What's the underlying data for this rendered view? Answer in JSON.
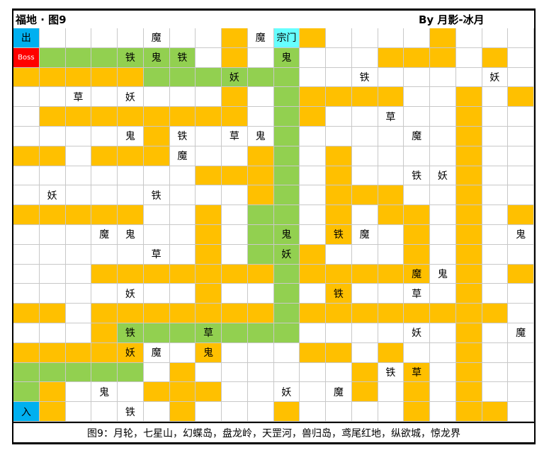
{
  "title": "福地 · 图9",
  "author": "By  月影-冰月",
  "footer": "图9：月轮，七星山，幻蝶岛，盘龙岭，天罡河，兽归岛，鸢尾红地，纵欲城，惊龙界",
  "colors": {
    "orange": "#ffc000",
    "green": "#92d050",
    "blue": "#00b0f0",
    "red": "#ff0000",
    "cyan": "#66ffff",
    "white": "#ffffff"
  },
  "legend_codes": {
    "O": "orange",
    "G": "green",
    "B": "blue",
    "R": "red",
    "C": "cyan",
    "W": "white"
  },
  "grid": {
    "rows": 20,
    "cols": 20,
    "fill": [
      "BWWWWWWWOWCOWWWWOWWW",
      "RGGGGGGWOWGWWWOOOWOW",
      "OOOOOGGGGGGWWWWWWWWW",
      "WWWWWWWWOWGOOOOWWOWO",
      "WOOOOOOOOWGOWWWWWOWW",
      "WWWWWOWWWWGWWWWWWOWW",
      "OOWOOOWWWOGWOWWWWOWW",
      "WWWWWWWOOOGWOWWWWOWW",
      "WWWWWWWWWOGWOOOWWOWW",
      "OOOOOWWOWGGWOWOOWOWO",
      "WWWWWWWOWGGWOWWOWOWW",
      "WWWWWWWOWGGOWWWOWOWW",
      "WWWOOOOOOOGOOOOOWOWO",
      "WWWWWWWOWWGWOWWWWOWW",
      "OOWOOOOOOOGOOOOOOOOW",
      "WWWOGGGGGGGWWWWWWOWW",
      "OOOOOWWOWWWOOWOWWOWW",
      "GGGGGWOWWWWWWOWOWOWW",
      "GOWWWOOOWWWWWOWOWOWW",
      "BOWWWWOWWWOWWWWOWOOW"
    ],
    "labels": [
      [
        "出",
        "",
        "",
        "",
        "",
        "魔",
        "",
        "",
        "",
        "魔",
        "宗门",
        "",
        "",
        "",
        "",
        "",
        "",
        "",
        "",
        ""
      ],
      [
        "Boss",
        "",
        "",
        "",
        "铁",
        "鬼",
        "铁",
        "",
        "",
        "",
        "鬼",
        "",
        "",
        "",
        "",
        "",
        "",
        "",
        "",
        ""
      ],
      [
        "",
        "",
        "",
        "",
        "",
        "",
        "",
        "",
        "妖",
        "",
        "",
        "",
        "",
        "铁",
        "",
        "",
        "",
        "",
        "妖",
        ""
      ],
      [
        "",
        "",
        "草",
        "",
        "妖",
        "",
        "",
        "",
        "",
        "",
        "",
        "",
        "",
        "",
        "",
        "",
        "",
        "",
        "",
        ""
      ],
      [
        "",
        "",
        "",
        "",
        "",
        "",
        "",
        "",
        "",
        "",
        "",
        "",
        "",
        "",
        "草",
        "",
        "",
        "",
        "",
        ""
      ],
      [
        "",
        "",
        "",
        "",
        "鬼",
        "",
        "铁",
        "",
        "草",
        "鬼",
        "",
        "",
        "",
        "",
        "",
        "魔",
        "",
        "",
        "",
        ""
      ],
      [
        "",
        "",
        "",
        "",
        "",
        "",
        "魔",
        "",
        "",
        "",
        "",
        "",
        "",
        "",
        "",
        "",
        "",
        "",
        "",
        ""
      ],
      [
        "",
        "",
        "",
        "",
        "",
        "",
        "",
        "",
        "",
        "",
        "",
        "",
        "",
        "",
        "",
        "铁",
        "妖",
        "",
        "",
        ""
      ],
      [
        "",
        "妖",
        "",
        "",
        "",
        "铁",
        "",
        "",
        "",
        "",
        "",
        "",
        "",
        "",
        "",
        "",
        "",
        "",
        "",
        ""
      ],
      [
        "",
        "",
        "",
        "",
        "",
        "",
        "",
        "",
        "",
        "",
        "",
        "",
        "",
        "",
        "",
        "",
        "",
        "",
        "",
        ""
      ],
      [
        "",
        "",
        "",
        "魔",
        "鬼",
        "",
        "",
        "",
        "",
        "",
        "鬼",
        "",
        "铁",
        "魔",
        "",
        "",
        "",
        "",
        "",
        "鬼"
      ],
      [
        "",
        "",
        "",
        "",
        "",
        "草",
        "",
        "",
        "",
        "",
        "妖",
        "",
        "",
        "",
        "",
        "",
        "",
        "",
        "",
        ""
      ],
      [
        "",
        "",
        "",
        "",
        "",
        "",
        "",
        "",
        "",
        "",
        "",
        "",
        "",
        "",
        "",
        "魔",
        "鬼",
        "",
        "",
        ""
      ],
      [
        "",
        "",
        "",
        "",
        "妖",
        "",
        "",
        "",
        "",
        "",
        "",
        "",
        "铁",
        "",
        "",
        "草",
        "",
        "",
        "",
        ""
      ],
      [
        "",
        "",
        "",
        "",
        "",
        "",
        "",
        "",
        "",
        "",
        "",
        "",
        "",
        "",
        "",
        "",
        "",
        "",
        "",
        ""
      ],
      [
        "",
        "",
        "",
        "",
        "铁",
        "",
        "",
        "草",
        "",
        "",
        "",
        "",
        "",
        "",
        "",
        "妖",
        "",
        "",
        "",
        "魔"
      ],
      [
        "",
        "",
        "",
        "",
        "妖",
        "魔",
        "",
        "鬼",
        "",
        "",
        "",
        "",
        "",
        "",
        "",
        "",
        "",
        "",
        "",
        ""
      ],
      [
        "",
        "",
        "",
        "",
        "",
        "",
        "",
        "",
        "",
        "",
        "",
        "",
        "",
        "",
        "铁",
        "草",
        "",
        "",
        "",
        ""
      ],
      [
        "",
        "",
        "",
        "鬼",
        "",
        "",
        "",
        "",
        "",
        "",
        "妖",
        "",
        "魔",
        "",
        "",
        "",
        "",
        "",
        "",
        ""
      ],
      [
        "入",
        "",
        "",
        "",
        "铁",
        "",
        "",
        "",
        "",
        "",
        "",
        "",
        "",
        "",
        "",
        "",
        "",
        "",
        "",
        ""
      ]
    ]
  }
}
